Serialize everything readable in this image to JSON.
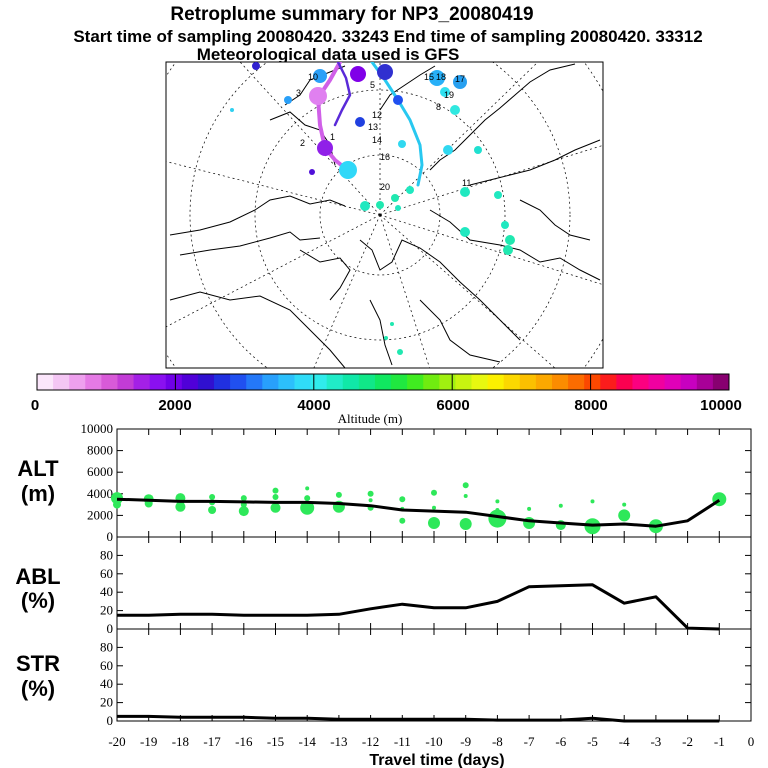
{
  "header": {
    "title": "Retroplume summary for NP3_20080419",
    "line2": "Start time of sampling 20080420. 33243     End time of sampling 20080420. 33312",
    "line3": "Meteorological data used is GFS"
  },
  "map": {
    "trajectory_labels": [
      "3",
      "5",
      "8",
      "10",
      "11",
      "12",
      "13",
      "14",
      "15",
      "16",
      "17",
      "18",
      "19",
      "20",
      "1",
      "2"
    ]
  },
  "colorbar": {
    "colors": [
      "#fbe6fb",
      "#f4c6f4",
      "#eea0ee",
      "#e57ae5",
      "#d85ad8",
      "#c23cd6",
      "#a420e6",
      "#8a10f0",
      "#7000e8",
      "#5000d8",
      "#3010d0",
      "#2030e0",
      "#2050f0",
      "#2478f8",
      "#28a0fc",
      "#2cc0fc",
      "#30dcf8",
      "#30ecec",
      "#20ecc8",
      "#10e8a8",
      "#10e888",
      "#10e860",
      "#20e840",
      "#40ec20",
      "#70ec10",
      "#a0f010",
      "#c8f410",
      "#e8f810",
      "#fcf000",
      "#fcd800",
      "#fcc000",
      "#fca800",
      "#fc8c00",
      "#fc6c00",
      "#fc4800",
      "#fc1c1c",
      "#fc0050",
      "#fc0080",
      "#f000a0",
      "#e000b8",
      "#c800c0",
      "#a80098",
      "#880070"
    ],
    "tick_labels": [
      "0",
      "2000",
      "4000",
      "6000",
      "8000",
      "10000"
    ],
    "label": "Altitude (m)"
  },
  "chart_data": [
    {
      "type": "line",
      "name": "ALT",
      "ylabel_line1": "ALT",
      "ylabel_line2": "(m)",
      "ylim": [
        0,
        10000
      ],
      "yticks": [
        "0",
        "2000",
        "4000",
        "6000",
        "8000",
        "10000"
      ],
      "ytick_values": [
        0,
        2000,
        4000,
        6000,
        8000,
        10000
      ],
      "x": [
        -20,
        -19,
        -18,
        -17,
        -16,
        -15,
        -14,
        -13,
        -12,
        -11,
        -10,
        -9,
        -8,
        -7,
        -6,
        -5,
        -4,
        -3,
        -2,
        -1
      ],
      "values": [
        3500,
        3400,
        3300,
        3300,
        3250,
        3200,
        3200,
        3100,
        2900,
        2500,
        2400,
        2300,
        1900,
        1500,
        1300,
        1100,
        1200,
        1000,
        1500,
        3400
      ],
      "scatter_x": [
        -20,
        -20,
        -19,
        -19,
        -18,
        -18,
        -18,
        -17,
        -17,
        -17,
        -16,
        -16,
        -16,
        -15,
        -15,
        -15,
        -14,
        -14,
        -14,
        -13,
        -13,
        -12,
        -12,
        -12,
        -11,
        -11,
        -11,
        -10,
        -10,
        -10,
        -9,
        -9,
        -9,
        -8,
        -8,
        -8,
        -7,
        -7,
        -6,
        -6,
        -5,
        -5,
        -4,
        -4,
        -3,
        -1
      ],
      "scatter_y": [
        3600,
        3000,
        3500,
        3100,
        3600,
        3000,
        2800,
        3700,
        3200,
        2500,
        3600,
        3000,
        2400,
        4300,
        3700,
        2700,
        4500,
        3600,
        2700,
        3900,
        2800,
        4000,
        3400,
        2700,
        3500,
        2600,
        1500,
        4100,
        2700,
        1300,
        4800,
        3800,
        1200,
        3300,
        2500,
        1700,
        2600,
        1300,
        2900,
        1100,
        3300,
        1000,
        3000,
        2000,
        1000,
        3500
      ],
      "scatter_r": [
        6,
        4,
        5,
        4,
        5,
        4,
        5,
        3,
        3,
        4,
        3,
        3,
        5,
        3,
        3,
        5,
        2,
        3,
        7,
        3,
        6,
        3,
        2,
        3,
        3,
        2,
        3,
        3,
        2,
        6,
        3,
        2,
        6,
        2,
        2,
        9,
        2,
        6,
        2,
        5,
        2,
        8,
        2,
        6,
        7,
        7
      ],
      "xlim": [
        -20,
        0
      ]
    },
    {
      "type": "line",
      "name": "ABL",
      "ylabel_line1": "ABL",
      "ylabel_line2": "(%)",
      "ylim": [
        0,
        100
      ],
      "yticks": [
        "0",
        "20",
        "40",
        "60",
        "80"
      ],
      "ytick_values": [
        0,
        20,
        40,
        60,
        80
      ],
      "x": [
        -20,
        -19,
        -18,
        -17,
        -16,
        -15,
        -14,
        -13,
        -12,
        -11,
        -10,
        -9,
        -8,
        -7,
        -6,
        -5,
        -4,
        -3,
        -2,
        -1
      ],
      "values": [
        15,
        15,
        16,
        16,
        15,
        15,
        15,
        16,
        22,
        27,
        23,
        23,
        30,
        46,
        47,
        48,
        28,
        35,
        1,
        0
      ],
      "xlim": [
        -20,
        0
      ]
    },
    {
      "type": "line",
      "name": "STR",
      "ylabel_line1": "STR",
      "ylabel_line2": "(%)",
      "ylim": [
        0,
        100
      ],
      "yticks": [
        "0",
        "20",
        "40",
        "60",
        "80"
      ],
      "ytick_values": [
        0,
        20,
        40,
        60,
        80
      ],
      "x": [
        -20,
        -19,
        -18,
        -17,
        -16,
        -15,
        -14,
        -13,
        -12,
        -11,
        -10,
        -9,
        -8,
        -7,
        -6,
        -5,
        -4,
        -3,
        -2,
        -1
      ],
      "values": [
        5,
        5,
        4,
        4,
        4,
        3,
        3,
        2,
        2,
        2,
        2,
        2,
        1,
        1,
        1,
        3,
        0,
        0,
        0,
        0
      ],
      "xlim": [
        -20,
        0
      ]
    }
  ],
  "xaxis": {
    "tick_labels": [
      "-20",
      "-19",
      "-18",
      "-17",
      "-16",
      "-15",
      "-14",
      "-13",
      "-12",
      "-11",
      "-10",
      "-9",
      "-8",
      "-7",
      "-6",
      "-5",
      "-4",
      "-3",
      "-2",
      "-1",
      "0"
    ],
    "label": "Travel time (days)"
  }
}
